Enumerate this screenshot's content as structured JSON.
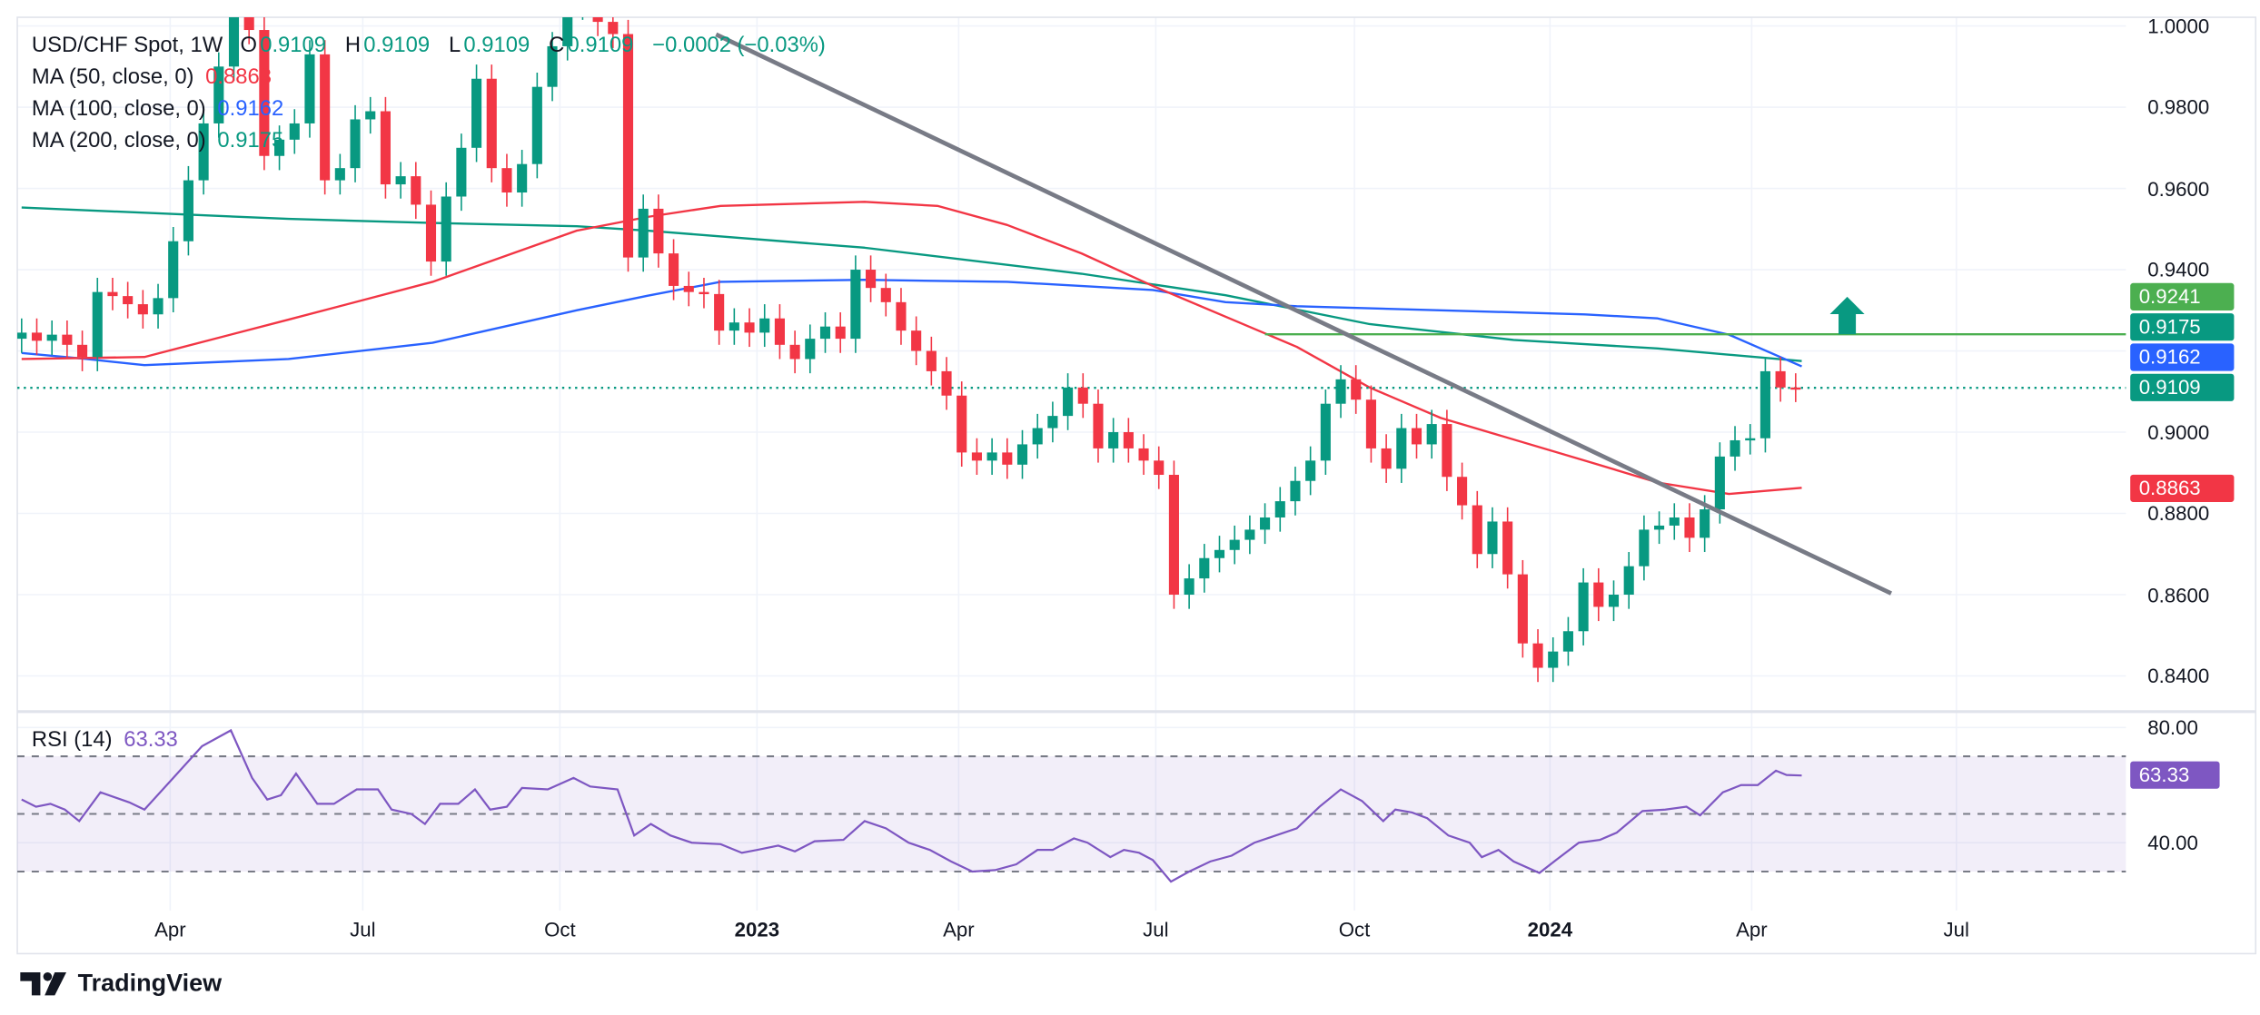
{
  "legend": {
    "symbol": "USD/CHF Spot, 1W",
    "o_label": "O",
    "o_value": "0.9109",
    "h_label": "H",
    "h_value": "0.9109",
    "l_label": "L",
    "l_value": "0.9109",
    "c_label": "C",
    "c_value": "0.9109",
    "change": "−0.0002 (−0.03%)",
    "ma50_label": "MA (50, close, 0)",
    "ma50_value": "0.8863",
    "ma100_label": "MA (100, close, 0)",
    "ma100_value": "0.9162",
    "ma200_label": "MA (200, close, 0)",
    "ma200_value": "0.9175",
    "rsi_label": "RSI (14)",
    "rsi_value": "63.33"
  },
  "price_axis": [
    "1.0000",
    "0.9800",
    "0.9600",
    "0.9400",
    "0.9000",
    "0.8800",
    "0.8600",
    "0.8400"
  ],
  "rsi_axis": [
    "80.00",
    "40.00"
  ],
  "price_tags": [
    {
      "text": "0.9241",
      "price": 0.9241,
      "color": "#4caf50"
    },
    {
      "text": "0.9175",
      "price": 0.9175,
      "color": "#089981"
    },
    {
      "text": "0.9162",
      "price": 0.9162,
      "color": "#2962ff"
    },
    {
      "text": "0.9109",
      "price": 0.9109,
      "color": "#089981"
    },
    {
      "text": "0.8863",
      "price": 0.8863,
      "color": "#f23645"
    }
  ],
  "rsi_tag": {
    "text": "63.33",
    "value": 63.33,
    "color": "#7e57c2"
  },
  "time_axis": [
    {
      "text": "Apr",
      "week": 9.8,
      "bold": false
    },
    {
      "text": "Jul",
      "week": 22.5,
      "bold": false
    },
    {
      "text": "Oct",
      "week": 35.5,
      "bold": false
    },
    {
      "text": "2023",
      "week": 48.5,
      "bold": true
    },
    {
      "text": "Apr",
      "week": 61.8,
      "bold": false
    },
    {
      "text": "Jul",
      "week": 74.8,
      "bold": false
    },
    {
      "text": "Oct",
      "week": 87.9,
      "bold": false
    },
    {
      "text": "2024",
      "week": 100.8,
      "bold": true
    },
    {
      "text": "Apr",
      "week": 114.1,
      "bold": false
    },
    {
      "text": "Jul",
      "week": 127.6,
      "bold": false
    }
  ],
  "logo": "TradingView",
  "colors": {
    "up": "#089981",
    "down": "#f23645",
    "ma50": "#f23645",
    "ma100": "#2962ff",
    "ma200": "#089981",
    "trend": "#787b86",
    "resistance": "#4caf50",
    "rsi": "#7e57c2",
    "arrow": "#089981"
  },
  "chart_data": {
    "type": "candlestick",
    "title": "USD/CHF Spot, 1W",
    "ylim": [
      0.83,
      1.0
    ],
    "first_open": 0.923,
    "wick_default": 0.0035,
    "closes": [
      0.9245,
      0.9225,
      0.924,
      0.9215,
      0.9185,
      0.9345,
      0.9335,
      0.9315,
      0.929,
      0.933,
      0.947,
      0.962,
      0.976,
      0.99,
      1.003,
      0.999,
      0.968,
      0.972,
      0.976,
      0.993,
      0.962,
      0.965,
      0.977,
      0.979,
      0.961,
      0.963,
      0.956,
      0.942,
      0.958,
      0.97,
      0.987,
      0.965,
      0.959,
      0.966,
      0.985,
      0.995,
      1.005,
      1.012,
      1.001,
      0.998,
      0.943,
      0.955,
      0.944,
      0.936,
      0.9345,
      0.934,
      0.925,
      0.927,
      0.9245,
      0.928,
      0.9215,
      0.918,
      0.923,
      0.926,
      0.923,
      0.94,
      0.9355,
      0.932,
      0.925,
      0.92,
      0.915,
      0.909,
      0.895,
      0.893,
      0.895,
      0.892,
      0.897,
      0.901,
      0.904,
      0.911,
      0.907,
      0.896,
      0.9,
      0.896,
      0.893,
      0.8895,
      0.86,
      0.864,
      0.869,
      0.871,
      0.8735,
      0.876,
      0.879,
      0.883,
      0.888,
      0.893,
      0.907,
      0.913,
      0.908,
      0.896,
      0.891,
      0.901,
      0.897,
      0.902,
      0.889,
      0.882,
      0.87,
      0.878,
      0.865,
      0.848,
      0.842,
      0.846,
      0.851,
      0.863,
      0.857,
      0.86,
      0.867,
      0.876,
      0.877,
      0.879,
      0.874,
      0.881,
      0.894,
      0.898,
      0.8985,
      0.915,
      0.911,
      0.9109
    ],
    "ma50": [
      [
        0,
        0.918
      ],
      [
        8.1,
        0.9185
      ],
      [
        17.6,
        0.9277
      ],
      [
        27.1,
        0.937
      ],
      [
        36.6,
        0.9496
      ],
      [
        41.3,
        0.953
      ],
      [
        46.1,
        0.9557
      ],
      [
        55.6,
        0.9567
      ],
      [
        60.4,
        0.9557
      ],
      [
        65,
        0.951
      ],
      [
        69.9,
        0.944
      ],
      [
        74.6,
        0.936
      ],
      [
        84.1,
        0.921
      ],
      [
        88.9,
        0.911
      ],
      [
        93.6,
        0.9035
      ],
      [
        103.1,
        0.893
      ],
      [
        107.9,
        0.8876
      ],
      [
        112.6,
        0.8848
      ],
      [
        117.4,
        0.8863
      ]
    ],
    "ma100": [
      [
        0,
        0.9195
      ],
      [
        4.3,
        0.918
      ],
      [
        8.1,
        0.9165
      ],
      [
        17.6,
        0.918
      ],
      [
        27.1,
        0.922
      ],
      [
        36.6,
        0.93
      ],
      [
        41.3,
        0.9336
      ],
      [
        46.1,
        0.937
      ],
      [
        55.6,
        0.9375
      ],
      [
        65,
        0.937
      ],
      [
        74.6,
        0.935
      ],
      [
        79.4,
        0.932
      ],
      [
        84.1,
        0.931
      ],
      [
        93.6,
        0.93
      ],
      [
        103.1,
        0.929
      ],
      [
        107.9,
        0.928
      ],
      [
        112.6,
        0.924
      ],
      [
        117.4,
        0.9162
      ]
    ],
    "ma200": [
      [
        0,
        0.9553
      ],
      [
        17.6,
        0.9525
      ],
      [
        27.1,
        0.9515
      ],
      [
        36.6,
        0.9507
      ],
      [
        41.3,
        0.9496
      ],
      [
        55.6,
        0.9454
      ],
      [
        69.9,
        0.939
      ],
      [
        79.4,
        0.9337
      ],
      [
        88.9,
        0.9266
      ],
      [
        98.4,
        0.9227
      ],
      [
        107.9,
        0.9206
      ],
      [
        117.4,
        0.9175
      ]
    ],
    "trendline": [
      [
        45.8,
        0.9979
      ],
      [
        123.3,
        0.8603
      ]
    ],
    "resistance": {
      "price": 0.9241,
      "from_week": 82
    },
    "arrow_up": {
      "week": 120.4,
      "price": 0.9241
    },
    "last_price": 0.9109,
    "rsi": {
      "period": 14,
      "ylim": [
        20,
        85
      ],
      "levels": [
        70,
        50,
        30
      ],
      "points": [
        [
          0,
          55
        ],
        [
          0.95,
          52.5
        ],
        [
          1.9,
          53.5
        ],
        [
          2.85,
          51.5
        ],
        [
          3.8,
          47.5
        ],
        [
          5.2,
          57.5
        ],
        [
          7.1,
          54
        ],
        [
          8.1,
          51.5
        ],
        [
          10,
          62.5
        ],
        [
          11.9,
          73.5
        ],
        [
          13.8,
          79
        ],
        [
          15.2,
          62.5
        ],
        [
          16.2,
          55
        ],
        [
          17.1,
          56.5
        ],
        [
          18.1,
          64
        ],
        [
          19.5,
          53.5
        ],
        [
          20.6,
          53.5
        ],
        [
          22.1,
          58.5
        ],
        [
          23.5,
          58.5
        ],
        [
          24.4,
          51.5
        ],
        [
          25.7,
          50
        ],
        [
          26.6,
          46.5
        ],
        [
          27.6,
          53.5
        ],
        [
          28.8,
          53.5
        ],
        [
          29.9,
          58.5
        ],
        [
          30.9,
          51.5
        ],
        [
          32,
          52.5
        ],
        [
          33,
          59
        ],
        [
          34.7,
          58.5
        ],
        [
          36.4,
          62.5
        ],
        [
          37.5,
          59.5
        ],
        [
          39.3,
          58.5
        ],
        [
          40.4,
          42.5
        ],
        [
          41.5,
          46.5
        ],
        [
          42.8,
          42.5
        ],
        [
          44.2,
          40
        ],
        [
          46.1,
          39.5
        ],
        [
          47.5,
          36.5
        ],
        [
          48.5,
          37.5
        ],
        [
          49.9,
          39
        ],
        [
          51,
          37
        ],
        [
          52.3,
          40.5
        ],
        [
          54.2,
          41
        ],
        [
          55.6,
          47.5
        ],
        [
          57,
          45
        ],
        [
          58.5,
          40
        ],
        [
          59.9,
          37.5
        ],
        [
          61.3,
          33.5
        ],
        [
          62.7,
          30
        ],
        [
          64.2,
          30.5
        ],
        [
          65.6,
          32.5
        ],
        [
          67,
          37.5
        ],
        [
          68,
          37.5
        ],
        [
          69.4,
          41.5
        ],
        [
          70.3,
          40
        ],
        [
          71.8,
          35
        ],
        [
          72.7,
          37.5
        ],
        [
          73.7,
          36.5
        ],
        [
          74.6,
          34
        ],
        [
          75.8,
          26.5
        ],
        [
          77,
          30
        ],
        [
          78.4,
          33.5
        ],
        [
          79.8,
          35.5
        ],
        [
          81.3,
          40
        ],
        [
          82.7,
          42.5
        ],
        [
          84.1,
          45
        ],
        [
          85.6,
          52.5
        ],
        [
          87,
          58.5
        ],
        [
          88.4,
          54.5
        ],
        [
          89.8,
          47.5
        ],
        [
          90.6,
          51.5
        ],
        [
          91.7,
          50.5
        ],
        [
          92.7,
          48.5
        ],
        [
          94.1,
          42.5
        ],
        [
          95.5,
          40
        ],
        [
          96.3,
          35
        ],
        [
          97.4,
          37.5
        ],
        [
          98.4,
          33.5
        ],
        [
          100.1,
          29.5
        ],
        [
          101.2,
          34
        ],
        [
          102.7,
          40
        ],
        [
          104.1,
          41
        ],
        [
          105.2,
          43.5
        ],
        [
          106.9,
          51
        ],
        [
          108.4,
          51.5
        ],
        [
          109.8,
          52.5
        ],
        [
          110.7,
          49.5
        ],
        [
          112.2,
          57.5
        ],
        [
          113.4,
          60
        ],
        [
          114.5,
          60
        ],
        [
          115.7,
          65
        ],
        [
          116.4,
          63.5
        ],
        [
          117.4,
          63.33
        ]
      ]
    }
  }
}
